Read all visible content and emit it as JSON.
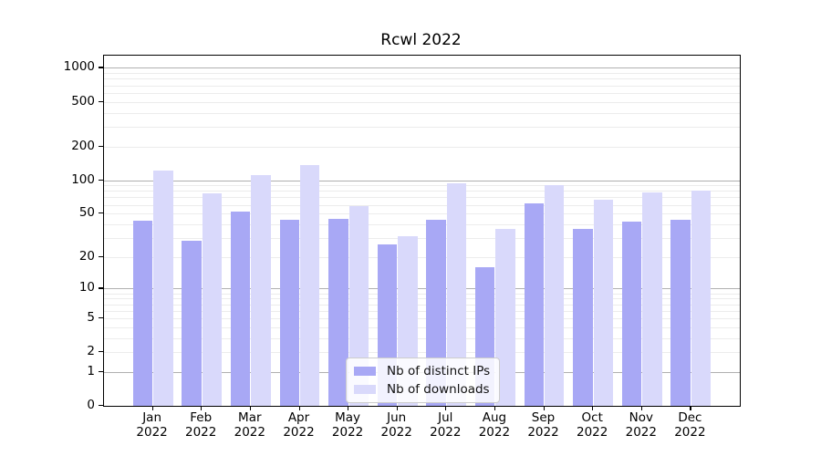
{
  "title": "Rcwl 2022",
  "chart_data": {
    "type": "bar",
    "title": "Rcwl 2022",
    "categories": [
      "Jan",
      "Feb",
      "Mar",
      "Apr",
      "May",
      "Jun",
      "Jul",
      "Aug",
      "Sep",
      "Oct",
      "Nov",
      "Dec"
    ],
    "category_sublabel": "2022",
    "series": [
      {
        "name": "Nb of distinct IPs",
        "color": "#a8a8f5",
        "values": [
          43,
          28,
          52,
          44,
          45,
          26,
          44,
          16,
          62,
          36,
          42,
          44
        ]
      },
      {
        "name": "Nb of downloads",
        "color": "#d9d9fb",
        "values": [
          121,
          76,
          110,
          136,
          58,
          31,
          94,
          36,
          91,
          67,
          78,
          80
        ]
      }
    ],
    "xlabel": "",
    "ylabel": "",
    "yscale": "log10(value+1)",
    "ylim": [
      0,
      1285
    ],
    "yticks": [
      0,
      1,
      2,
      5,
      10,
      20,
      50,
      100,
      200,
      500,
      1000
    ],
    "major_gridline_values": [
      1,
      10,
      100,
      1000
    ],
    "grid": true,
    "legend_position": "lower center",
    "colors": {
      "major_grid": "#b0b0b0",
      "minor_grid": "#ececec",
      "axis": "#000000",
      "background": "#ffffff"
    }
  }
}
